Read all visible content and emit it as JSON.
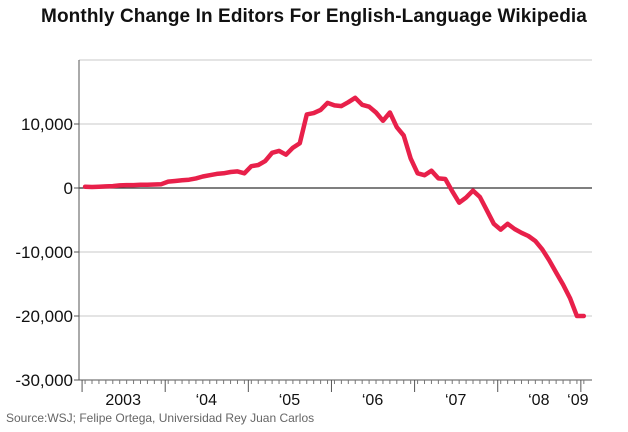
{
  "title": "Monthly Change In Editors For English-Language Wikipedia",
  "source": "Source:WSJ; Felipe Ortega, Universidad Rey Juan Carlos",
  "chart_data": {
    "type": "line",
    "title": "Monthly Change In Editors For English-Language Wikipedia",
    "xlabel": "",
    "ylabel": "",
    "ylim": [
      -30000,
      20000
    ],
    "yticks": [
      10000,
      0,
      -10000,
      -20000,
      -30000
    ],
    "ytick_labels": [
      "10,000",
      "0",
      "-10,000",
      "-20,000",
      "-30,000"
    ],
    "xtick_labels": [
      "2003",
      "‘04",
      "‘05",
      "‘06",
      "‘07",
      "‘08",
      "‘09"
    ],
    "xlim": [
      "2003-01",
      "2009-01"
    ],
    "grid": true,
    "line_color": "#e8204a",
    "series": [
      {
        "x": [
          "2003-01",
          "2003-02",
          "2003-03",
          "2003-04",
          "2003-05",
          "2003-06",
          "2003-07",
          "2003-08",
          "2003-09",
          "2003-10",
          "2003-11",
          "2003-12",
          "2004-01",
          "2004-02",
          "2004-03",
          "2004-04",
          "2004-05",
          "2004-06",
          "2004-07",
          "2004-08",
          "2004-09",
          "2004-10",
          "2004-11",
          "2004-12",
          "2005-01",
          "2005-02",
          "2005-03",
          "2005-04",
          "2005-05",
          "2005-06",
          "2005-07",
          "2005-08",
          "2005-09",
          "2005-10",
          "2005-11",
          "2005-12",
          "2006-01",
          "2006-02",
          "2006-03",
          "2006-04",
          "2006-05",
          "2006-06",
          "2006-07",
          "2006-08",
          "2006-09",
          "2006-10",
          "2006-11",
          "2006-12",
          "2007-01",
          "2007-02",
          "2007-03",
          "2007-04",
          "2007-05",
          "2007-06",
          "2007-07",
          "2007-08",
          "2007-09",
          "2007-10",
          "2007-11",
          "2007-12",
          "2008-01",
          "2008-02",
          "2008-03",
          "2008-04",
          "2008-05",
          "2008-06",
          "2008-07",
          "2008-08",
          "2008-09",
          "2008-10",
          "2008-11",
          "2008-12",
          "2009-01"
        ],
        "values": [
          200,
          150,
          200,
          250,
          300,
          400,
          450,
          450,
          500,
          500,
          550,
          600,
          1000,
          1100,
          1200,
          1300,
          1500,
          1800,
          2000,
          2200,
          2300,
          2500,
          2600,
          2300,
          3400,
          3600,
          4200,
          5500,
          5800,
          5200,
          6300,
          7000,
          11500,
          11700,
          12200,
          13300,
          12900,
          12800,
          13400,
          14100,
          13000,
          12700,
          11800,
          10500,
          11800,
          9500,
          8200,
          4600,
          2300,
          2000,
          2700,
          1500,
          1400,
          -500,
          -2300,
          -1500,
          -400,
          -1400,
          -3500,
          -5600,
          -6500,
          -5600,
          -6400,
          -7000,
          -7500,
          -8300,
          -9600,
          -11300,
          -13200,
          -15100,
          -17200,
          -20000,
          -20000
        ]
      }
    ]
  }
}
